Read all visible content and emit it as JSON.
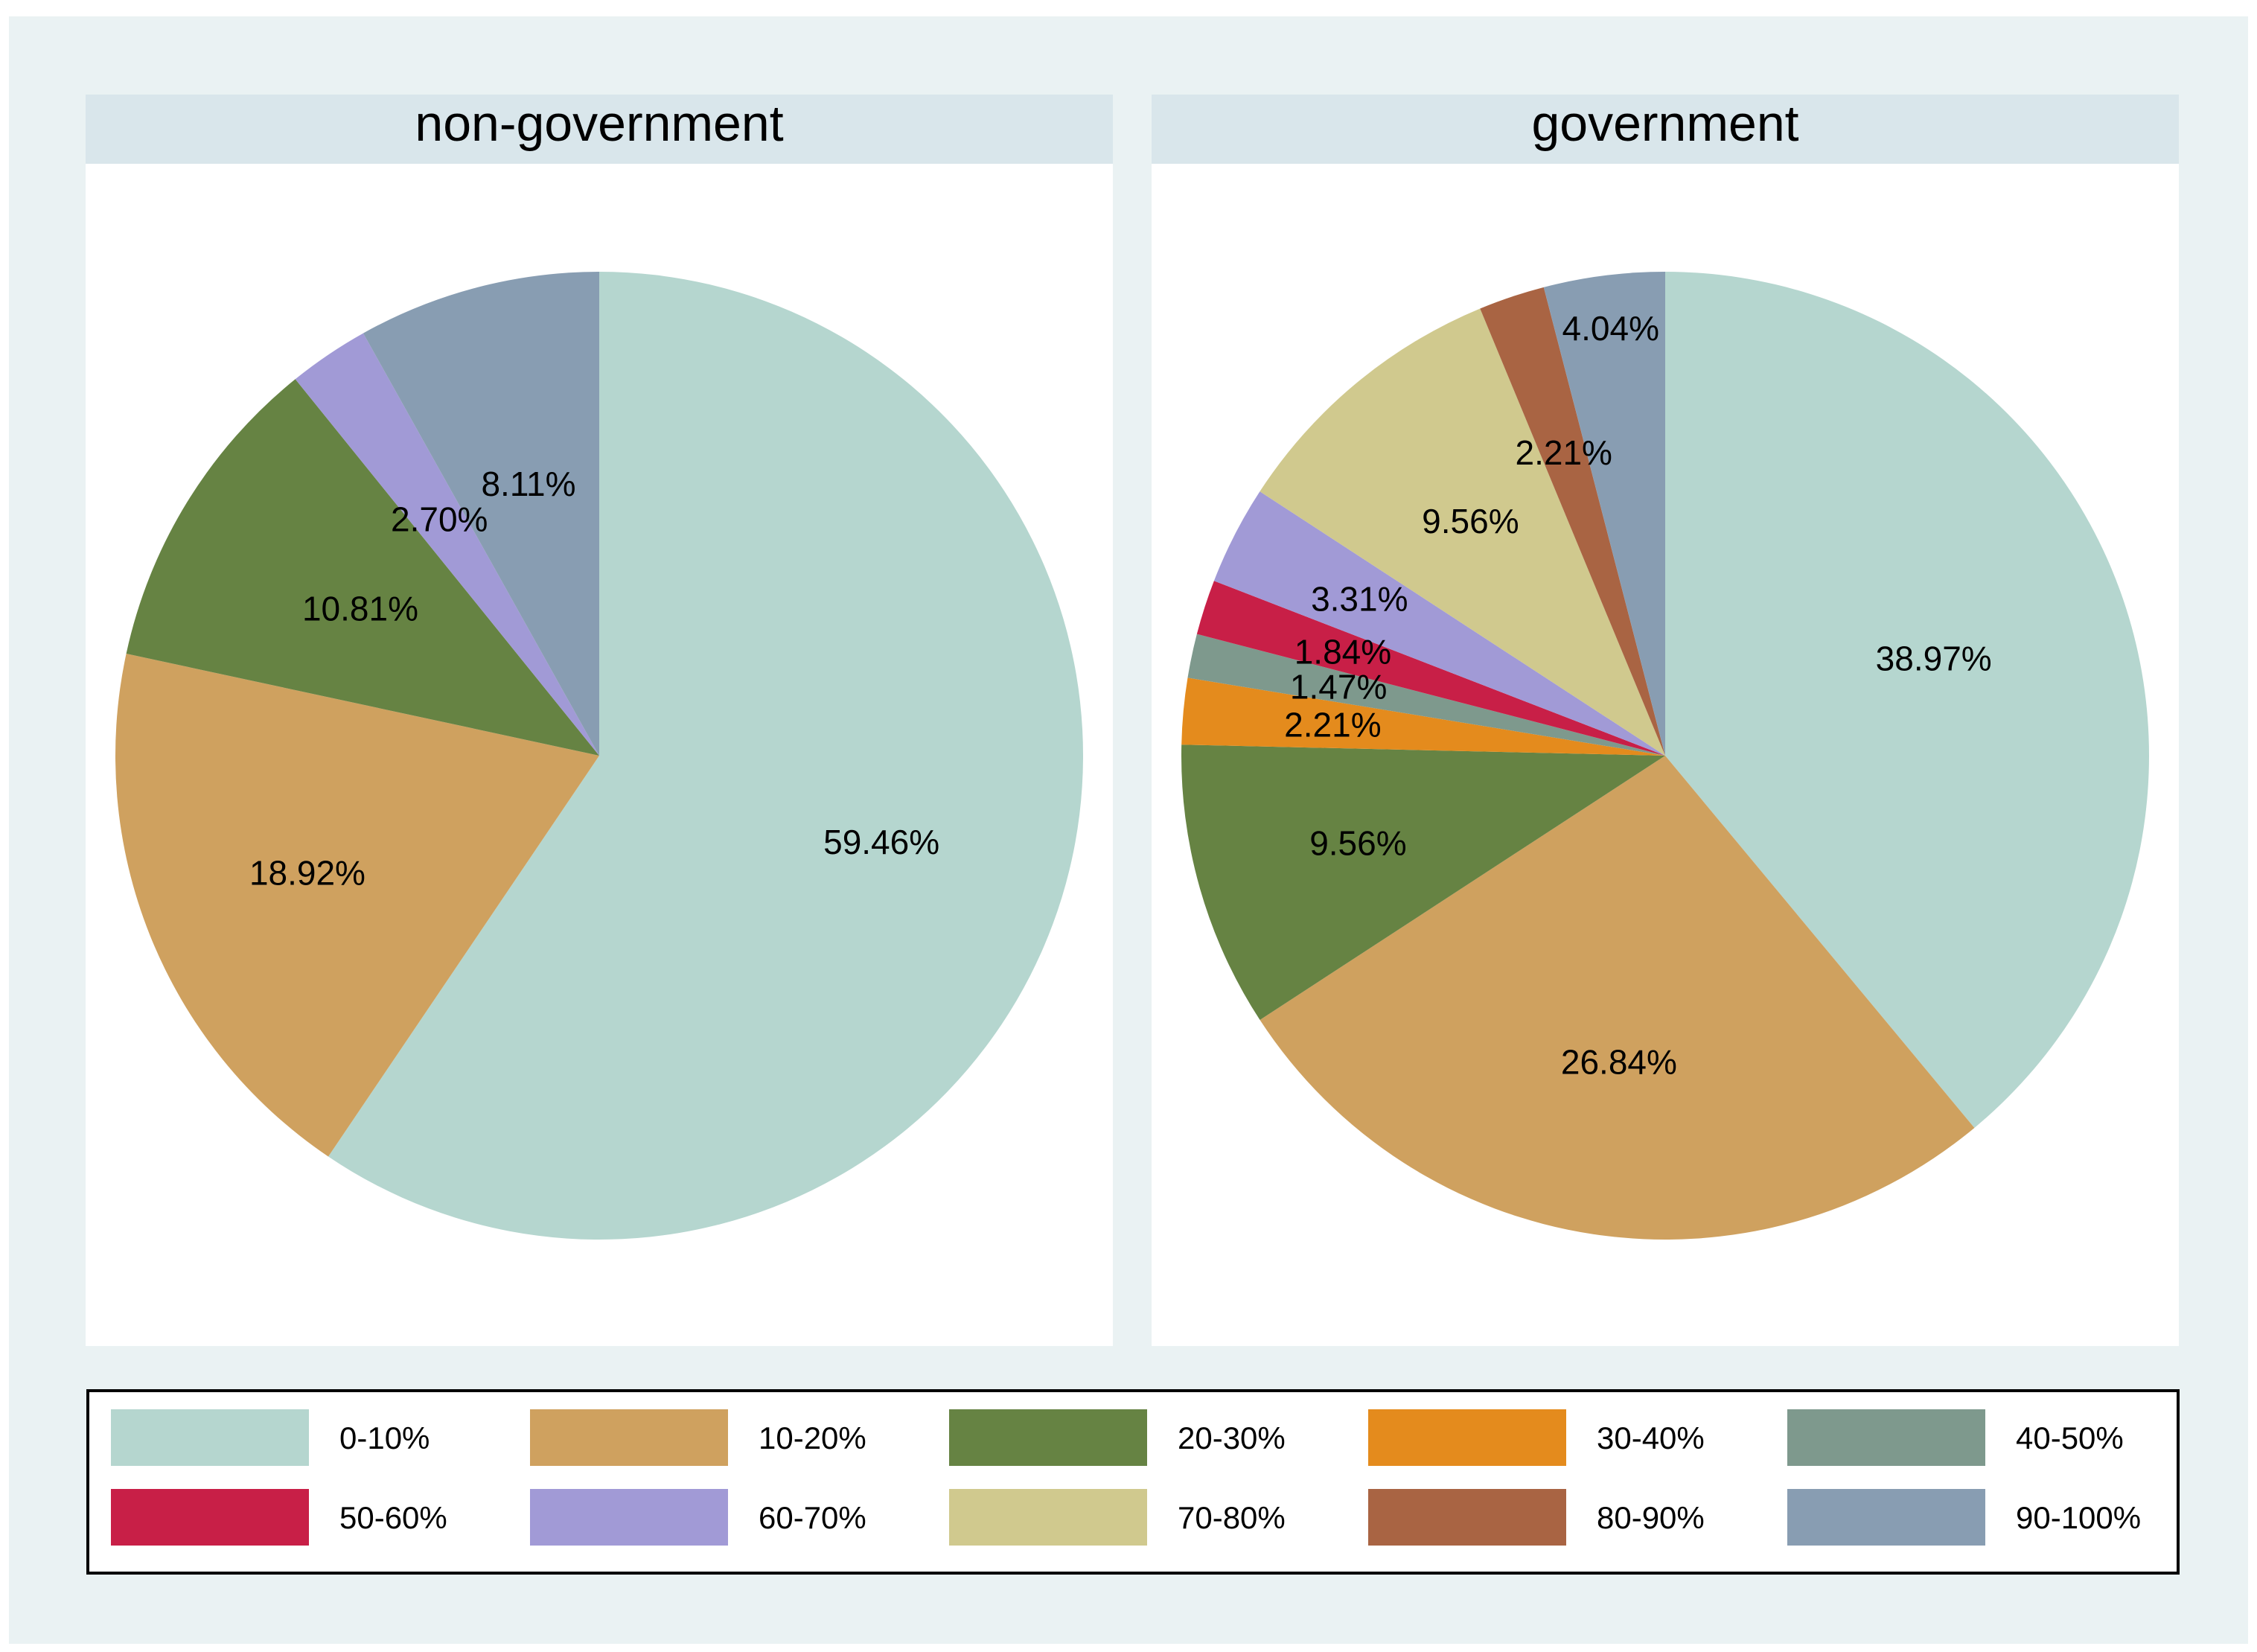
{
  "chart_data": {
    "type": "pie",
    "categories": [
      "0-10%",
      "10-20%",
      "20-30%",
      "30-40%",
      "40-50%",
      "50-60%",
      "60-70%",
      "70-80%",
      "80-90%",
      "90-100%"
    ],
    "colors": [
      "#b5d6cf",
      "#cfa15f",
      "#668343",
      "#e48b1d",
      "#7e998d",
      "#c81f47",
      "#a19ad6",
      "#d0c98e",
      "#a96443",
      "#889db2"
    ],
    "panels": [
      {
        "title": "non-government",
        "values": [
          59.46,
          18.92,
          10.81,
          0,
          0,
          0,
          2.7,
          0,
          0,
          8.11
        ],
        "labels": [
          "59.46%",
          "18.92%",
          "10.81%",
          "",
          "",
          "",
          "2.70%",
          "",
          "",
          "8.11%"
        ]
      },
      {
        "title": "government",
        "values": [
          38.97,
          26.84,
          9.56,
          2.21,
          1.47,
          1.84,
          3.31,
          9.56,
          2.21,
          4.04
        ],
        "labels": [
          "38.97%",
          "26.84%",
          "9.56%",
          "2.21%",
          "1.47%",
          "1.84%",
          "3.31%",
          "9.56%",
          "2.21%",
          "4.04%"
        ]
      }
    ],
    "legend_position": "bottom"
  }
}
